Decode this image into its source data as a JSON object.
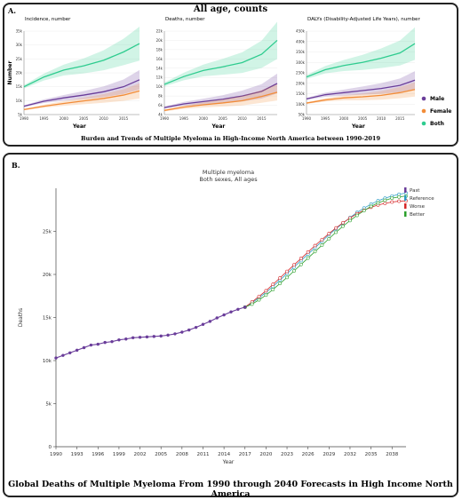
{
  "panel_a": {
    "label": "A.",
    "title": "All age, counts",
    "caption": "Burden and Trends of Multiple Myeloma in High-Income North America between 1990-2019",
    "legend": [
      {
        "name": "Male",
        "color": "#6a3d9a"
      },
      {
        "name": "Female",
        "color": "#f28c38"
      },
      {
        "name": "Both",
        "color": "#2ecc8f"
      }
    ]
  },
  "panel_b": {
    "label": "B.",
    "caption": "Global Deaths of Multiple Myeloma From 1990 through 2040 Forecasts in High Income North America"
  },
  "chart_data": [
    {
      "type": "line",
      "title": "Incidence, number",
      "xlabel": "Year",
      "ylabel": "Number",
      "xlim": [
        1990,
        2019
      ],
      "ylim": [
        5000,
        35000
      ],
      "x_ticks": [
        "1990",
        "1995",
        "2000",
        "2005",
        "2010",
        "2015"
      ],
      "y_ticks": [
        "5k",
        "10k",
        "15k",
        "20k",
        "25k",
        "30k",
        "35k"
      ],
      "x": [
        1990,
        1995,
        2000,
        2005,
        2010,
        2015,
        2019
      ],
      "series": [
        {
          "name": "Male",
          "values": [
            8000,
            9800,
            11000,
            12000,
            13200,
            15000,
            17500
          ],
          "color": "#6a3d9a"
        },
        {
          "name": "Female",
          "values": [
            6800,
            8000,
            9000,
            9900,
            10800,
            12000,
            13500
          ],
          "color": "#f28c38"
        },
        {
          "name": "Both",
          "values": [
            15000,
            18500,
            21000,
            22500,
            24500,
            27500,
            30500
          ],
          "color": "#2ecc8f"
        }
      ]
    },
    {
      "type": "line",
      "title": "Deaths, number",
      "xlabel": "Year",
      "ylabel": "",
      "xlim": [
        1990,
        2019
      ],
      "ylim": [
        4000,
        22000
      ],
      "x_ticks": [
        "1990",
        "1995",
        "2000",
        "2005",
        "2010",
        "2015"
      ],
      "y_ticks": [
        "4k",
        "6k",
        "8k",
        "10k",
        "12k",
        "14k",
        "16k",
        "18k",
        "20k",
        "22k"
      ],
      "x": [
        1990,
        1995,
        2000,
        2005,
        2010,
        2015,
        2019
      ],
      "series": [
        {
          "name": "Male",
          "values": [
            5500,
            6300,
            6800,
            7300,
            8000,
            9000,
            10700
          ],
          "color": "#6a3d9a"
        },
        {
          "name": "Female",
          "values": [
            4900,
            5600,
            6100,
            6500,
            7000,
            7900,
            8800
          ],
          "color": "#f28c38"
        },
        {
          "name": "Both",
          "values": [
            10500,
            12200,
            13500,
            14300,
            15200,
            17000,
            20000
          ],
          "color": "#2ecc8f"
        }
      ]
    },
    {
      "type": "line",
      "title": "DALYs (Disability-Adjusted Life Years), number",
      "xlabel": "Year",
      "ylabel": "",
      "xlim": [
        1990,
        2019
      ],
      "ylim": [
        50000,
        450000
      ],
      "x_ticks": [
        "1990",
        "1995",
        "2000",
        "2005",
        "2010",
        "2015"
      ],
      "y_ticks": [
        "50k",
        "100k",
        "150k",
        "200k",
        "250k",
        "300k",
        "350k",
        "400k",
        "450k"
      ],
      "x": [
        1990,
        1995,
        2000,
        2005,
        2010,
        2015,
        2019
      ],
      "series": [
        {
          "name": "Male",
          "values": [
            125000,
            145000,
            155000,
            165000,
            175000,
            190000,
            215000
          ],
          "color": "#6a3d9a"
        },
        {
          "name": "Female",
          "values": [
            105000,
            120000,
            130000,
            135000,
            142000,
            155000,
            170000
          ],
          "color": "#f28c38"
        },
        {
          "name": "Both",
          "values": [
            230000,
            265000,
            285000,
            300000,
            320000,
            345000,
            390000
          ],
          "color": "#2ecc8f"
        }
      ]
    },
    {
      "type": "line",
      "title": "Multiple myeloma",
      "subtitle": "Both sexes, All ages",
      "xlabel": "Year",
      "ylabel": "Deaths",
      "xlim": [
        1990,
        2040
      ],
      "ylim": [
        0,
        30000
      ],
      "x_ticks": [
        "1990",
        "1993",
        "1996",
        "1999",
        "2002",
        "2005",
        "2008",
        "2011",
        "2014",
        "2017",
        "2020",
        "2023",
        "2026",
        "2029",
        "2032",
        "2035",
        "2038"
      ],
      "y_ticks": [
        "0",
        "5k",
        "10k",
        "15k",
        "20k",
        "25k"
      ],
      "x_past": [
        1990,
        1991,
        1992,
        1993,
        1994,
        1995,
        1996,
        1997,
        1998,
        1999,
        2000,
        2001,
        2002,
        2003,
        2004,
        2005,
        2006,
        2007,
        2008,
        2009,
        2010,
        2011,
        2012,
        2013,
        2014,
        2015,
        2016,
        2017
      ],
      "past": [
        10300,
        10600,
        10900,
        11200,
        11500,
        11800,
        11900,
        12100,
        12200,
        12400,
        12500,
        12650,
        12700,
        12750,
        12800,
        12850,
        12950,
        13100,
        13300,
        13550,
        13850,
        14200,
        14550,
        14950,
        15300,
        15650,
        15950,
        16200
      ],
      "x_forecast": [
        2017,
        2018,
        2019,
        2020,
        2021,
        2022,
        2023,
        2024,
        2025,
        2026,
        2027,
        2028,
        2029,
        2030,
        2031,
        2032,
        2033,
        2034,
        2035,
        2036,
        2037,
        2038,
        2039,
        2040
      ],
      "series": [
        {
          "name": "Past",
          "color": "#6a3d9a"
        },
        {
          "name": "Reference",
          "color": "#2a9bc4",
          "values": [
            16200,
            16700,
            17300,
            17900,
            18600,
            19350,
            20100,
            20850,
            21600,
            22350,
            23100,
            23850,
            24600,
            25300,
            25950,
            26600,
            27200,
            27700,
            28150,
            28550,
            28850,
            29100,
            29300,
            29450
          ]
        },
        {
          "name": "Worse",
          "color": "#d62728",
          "values": [
            16200,
            16800,
            17450,
            18100,
            18850,
            19600,
            20350,
            21100,
            21850,
            22600,
            23350,
            24050,
            24750,
            25400,
            26000,
            26550,
            27050,
            27450,
            27800,
            28050,
            28250,
            28400,
            28500,
            28550
          ]
        },
        {
          "name": "Better",
          "color": "#2ca02c",
          "values": [
            16200,
            16550,
            17050,
            17600,
            18250,
            18950,
            19650,
            20400,
            21150,
            21900,
            22650,
            23400,
            24150,
            24900,
            25600,
            26250,
            26850,
            27400,
            27900,
            28300,
            28600,
            28850,
            29000,
            29100
          ]
        }
      ]
    }
  ]
}
